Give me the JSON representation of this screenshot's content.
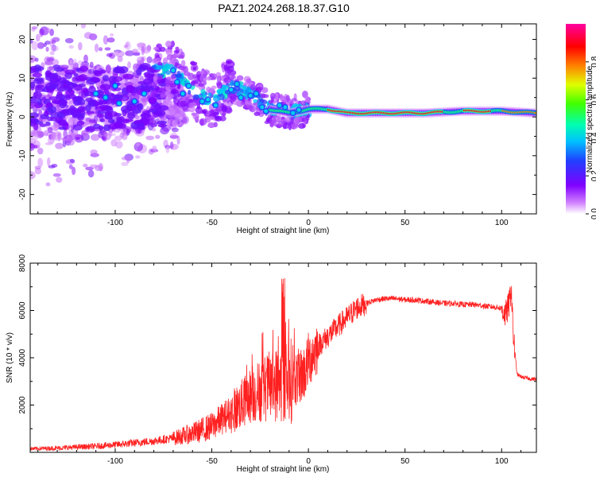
{
  "title": "PAZ1.2024.268.18.37.G10",
  "chart_data": [
    {
      "type": "heatmap",
      "xlabel": "Height of straight line (km)",
      "ylabel": "Frequency (Hz)",
      "xlim": [
        -144,
        118
      ],
      "ylim": [
        -25,
        24
      ],
      "x_ticks": [
        -100,
        -50,
        0,
        50,
        100
      ],
      "y_ticks": [
        -20,
        -10,
        0,
        10,
        20
      ],
      "colorbar": {
        "label": "Normalized spectral amplitude",
        "range": [
          0,
          1
        ],
        "ticks": [
          0.0,
          0.2,
          0.4,
          0.6,
          0.8
        ],
        "tick_labels": [
          "0.0",
          "0.2",
          "0.4",
          "0.6",
          "0.8"
        ],
        "colors": [
          "#ffffff",
          "#c040ff",
          "#4000ff",
          "#00a0ff",
          "#00ffb0",
          "#40ff00",
          "#ffff00",
          "#ff8000",
          "#ff0000",
          "#ff00a0"
        ]
      },
      "ridge": {
        "x": [
          -70,
          -60,
          -50,
          -40,
          -30,
          -20,
          -10,
          0,
          10,
          20,
          40,
          60,
          80,
          100,
          118
        ],
        "freq": [
          12,
          7,
          4,
          8,
          6,
          2,
          1,
          2,
          2,
          1,
          1,
          1,
          1.5,
          1.5,
          1
        ]
      }
    },
    {
      "type": "line",
      "xlabel": "Height of straight line (km)",
      "ylabel": "SNR (10 * v/v)",
      "xlim": [
        -144,
        118
      ],
      "ylim": [
        0,
        8000
      ],
      "x_ticks": [
        -100,
        -50,
        0,
        50,
        100
      ],
      "y_ticks": [
        2000,
        4000,
        6000,
        8000
      ],
      "color": "#ff2020",
      "x": [
        -144,
        -130,
        -120,
        -110,
        -100,
        -90,
        -80,
        -70,
        -60,
        -50,
        -45,
        -40,
        -35,
        -30,
        -25,
        -20,
        -15,
        -10,
        -5,
        -2,
        0,
        5,
        10,
        15,
        20,
        25,
        30,
        35,
        40,
        45,
        50,
        55,
        60,
        65,
        70,
        75,
        80,
        85,
        90,
        95,
        100,
        102,
        104,
        105,
        106,
        108,
        110,
        115,
        118
      ],
      "values": [
        150,
        180,
        220,
        260,
        320,
        400,
        480,
        600,
        800,
        1100,
        1400,
        1700,
        2000,
        2400,
        2600,
        2800,
        2900,
        3000,
        3200,
        3400,
        3900,
        4500,
        4900,
        5300,
        5700,
        6100,
        6300,
        6450,
        6500,
        6500,
        6450,
        6450,
        6400,
        6350,
        6300,
        6300,
        6250,
        6250,
        6200,
        6150,
        6100,
        5800,
        6300,
        7000,
        5000,
        3300,
        3200,
        3100,
        3100
      ]
    }
  ]
}
